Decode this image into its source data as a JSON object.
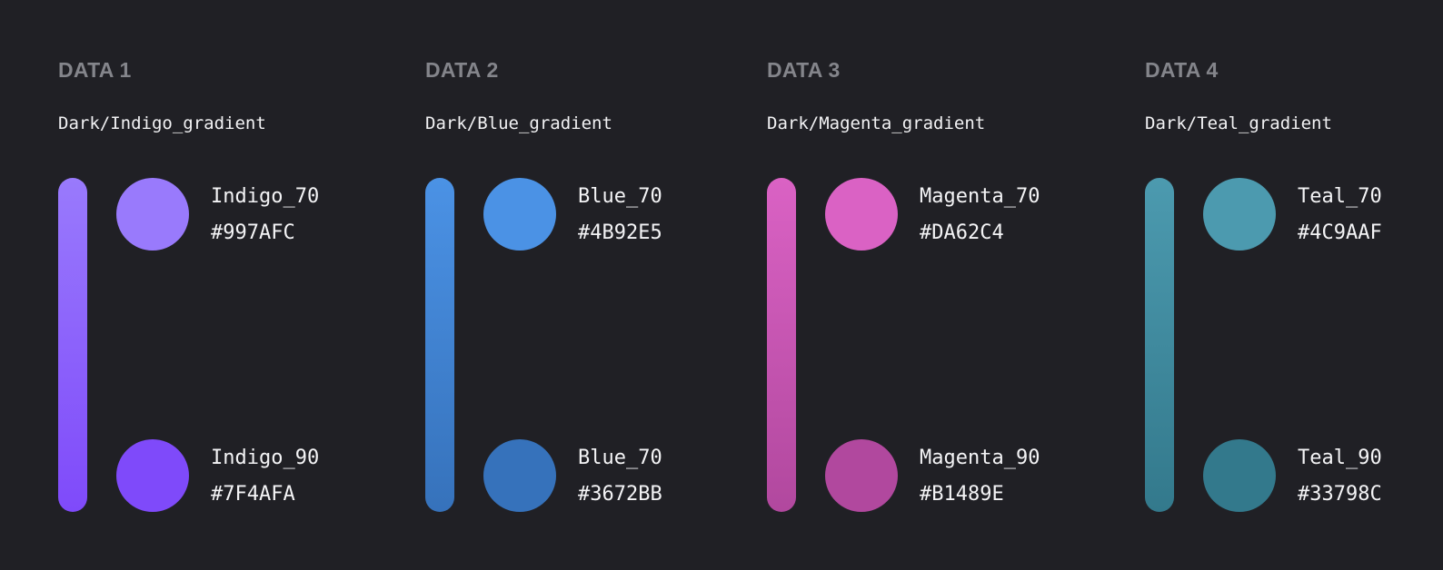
{
  "groups": [
    {
      "title": "DATA 1",
      "subtitle": "Dark/Indigo_gradient",
      "top": {
        "name": "Indigo_70",
        "hex": "#997AFC",
        "color": "#997AFC"
      },
      "bottom": {
        "name": "Indigo_90",
        "hex": "#7F4AFA",
        "color": "#7F4AFA"
      }
    },
    {
      "title": "DATA 2",
      "subtitle": "Dark/Blue_gradient",
      "top": {
        "name": "Blue_70",
        "hex": "#4B92E5",
        "color": "#4B92E5"
      },
      "bottom": {
        "name": "Blue_70",
        "hex": "#3672BB",
        "color": "#3672BB"
      }
    },
    {
      "title": "DATA 3",
      "subtitle": "Dark/Magenta_gradient",
      "top": {
        "name": "Magenta_70",
        "hex": "#DA62C4",
        "color": "#DA62C4"
      },
      "bottom": {
        "name": "Magenta_90",
        "hex": "#B1489E",
        "color": "#B1489E"
      }
    },
    {
      "title": "DATA 4",
      "subtitle": "Dark/Teal_gradient",
      "top": {
        "name": "Teal_70",
        "hex": "#4C9AAF",
        "color": "#4C9AAF"
      },
      "bottom": {
        "name": "Teal_90",
        "hex": "#33798C",
        "color": "#33798C"
      }
    }
  ],
  "background_color": "#202025"
}
